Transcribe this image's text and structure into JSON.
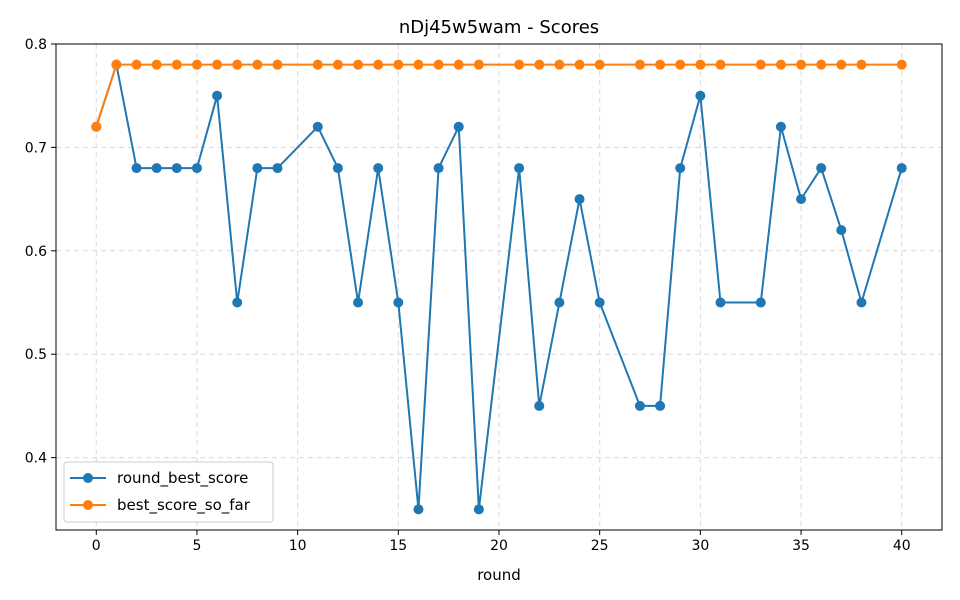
{
  "chart_data": {
    "type": "line",
    "title": "nDj45w5wam - Scores",
    "xlabel": "round",
    "ylabel": "",
    "xlim": [
      -2,
      42
    ],
    "ylim": [
      0.33,
      0.8
    ],
    "xticks": [
      0,
      5,
      10,
      15,
      20,
      25,
      30,
      35,
      40
    ],
    "yticks": [
      0.4,
      0.5,
      0.6,
      0.7,
      0.8
    ],
    "xtick_labels": [
      "0",
      "5",
      "10",
      "15",
      "20",
      "25",
      "30",
      "35",
      "40"
    ],
    "ytick_labels": [
      "0.4",
      "0.5",
      "0.6",
      "0.7",
      "0.8"
    ],
    "grid": true,
    "legend_position": "lower-left",
    "series": [
      {
        "name": "round_best_score",
        "color": "#1f77b4",
        "x": [
          0,
          1,
          2,
          3,
          4,
          5,
          6,
          7,
          8,
          9,
          11,
          12,
          13,
          14,
          15,
          16,
          17,
          18,
          19,
          21,
          22,
          23,
          24,
          25,
          27,
          28,
          29,
          30,
          31,
          33,
          34,
          35,
          36,
          37,
          38,
          40
        ],
        "y": [
          0.72,
          0.78,
          0.68,
          0.68,
          0.68,
          0.68,
          0.75,
          0.55,
          0.68,
          0.68,
          0.72,
          0.68,
          0.55,
          0.68,
          0.55,
          0.35,
          0.68,
          0.72,
          0.35,
          0.68,
          0.45,
          0.55,
          0.65,
          0.55,
          0.45,
          0.45,
          0.68,
          0.75,
          0.55,
          0.55,
          0.72,
          0.65,
          0.68,
          0.62,
          0.55,
          0.68
        ]
      },
      {
        "name": "best_score_so_far",
        "color": "#ff7f0e",
        "x": [
          0,
          1,
          2,
          3,
          4,
          5,
          6,
          7,
          8,
          9,
          11,
          12,
          13,
          14,
          15,
          16,
          17,
          18,
          19,
          21,
          22,
          23,
          24,
          25,
          27,
          28,
          29,
          30,
          31,
          33,
          34,
          35,
          36,
          37,
          38,
          40
        ],
        "y": [
          0.72,
          0.78,
          0.78,
          0.78,
          0.78,
          0.78,
          0.78,
          0.78,
          0.78,
          0.78,
          0.78,
          0.78,
          0.78,
          0.78,
          0.78,
          0.78,
          0.78,
          0.78,
          0.78,
          0.78,
          0.78,
          0.78,
          0.78,
          0.78,
          0.78,
          0.78,
          0.78,
          0.78,
          0.78,
          0.78,
          0.78,
          0.78,
          0.78,
          0.78,
          0.78,
          0.78
        ]
      }
    ]
  }
}
